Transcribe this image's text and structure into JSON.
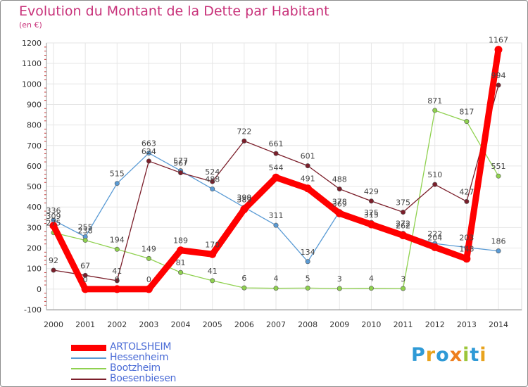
{
  "title": "Evolution du Montant de la Dette par Habitant",
  "subtitle": "(en €)",
  "logo": "Proxiti",
  "chart_data": {
    "type": "line",
    "title": "Evolution du Montant de la Dette par Habitant",
    "ylabel": "(en €)",
    "xlabel": "",
    "x": [
      "2000",
      "2001",
      "2002",
      "2003",
      "2004",
      "2005",
      "2006",
      "2007",
      "2008",
      "2009",
      "2010",
      "2011",
      "2012",
      "2013",
      "2014"
    ],
    "ylim": [
      -100,
      1200
    ],
    "yticks": [
      -100,
      0,
      100,
      200,
      300,
      400,
      500,
      600,
      700,
      800,
      900,
      1000,
      1100,
      1200
    ],
    "grid": true,
    "legend": "bottom-left",
    "series": [
      {
        "name": "ARTOLSHEIM",
        "color": "#ff0000",
        "values": [
          309,
          0,
          0,
          0,
          189,
          170,
          389,
          544,
          491,
          369,
          315,
          262,
          204,
          148,
          1167
        ]
      },
      {
        "name": "Hessenheim",
        "color": "#5a9bd5",
        "values": [
          336,
          255,
          515,
          663,
          577,
          488,
          399,
          311,
          134,
          378,
          325,
          272,
          222,
          203,
          186
        ]
      },
      {
        "name": "Bootzheim",
        "color": "#8fd14f",
        "values": [
          275,
          238,
          194,
          149,
          81,
          41,
          6,
          4,
          5,
          3,
          4,
          3,
          871,
          817,
          551
        ]
      },
      {
        "name": "Boesenbiesen",
        "color": "#7b1e2a",
        "values": [
          92,
          67,
          41,
          624,
          567,
          524,
          722,
          661,
          601,
          488,
          429,
          375,
          510,
          427,
          994
        ]
      }
    ]
  }
}
